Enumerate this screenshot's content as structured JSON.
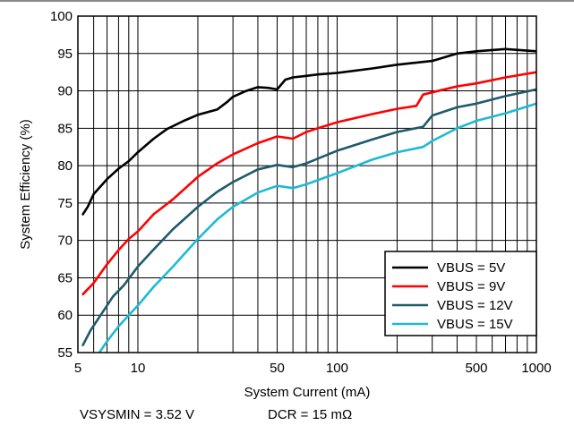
{
  "chart_data": {
    "type": "line",
    "xlabel": "System Current (mA)",
    "ylabel": "System Efficiency (%)",
    "x_scale": "log",
    "xlim": [
      5,
      1000
    ],
    "ylim": [
      55,
      100
    ],
    "x_ticks": [
      5,
      10,
      50,
      100,
      500,
      1000
    ],
    "x_tick_labels": [
      "5",
      "10",
      "50",
      "100",
      "500",
      "1000"
    ],
    "y_ticks": [
      55,
      60,
      65,
      70,
      75,
      80,
      85,
      90,
      95,
      100
    ],
    "y_tick_labels": [
      "55",
      "60",
      "65",
      "70",
      "75",
      "80",
      "85",
      "90",
      "95",
      "100"
    ],
    "grid": true,
    "legend_position": "bottom-right",
    "series": [
      {
        "name": "VBUS = 5V",
        "color": "#000000",
        "x": [
          5.3,
          5.6,
          6,
          7,
          8,
          9,
          10,
          12,
          14,
          17,
          20,
          25,
          28,
          30,
          35,
          40,
          45,
          50,
          55,
          60,
          70,
          80,
          100,
          150,
          200,
          300,
          400,
          500,
          700,
          1000
        ],
        "y": [
          73.5,
          74.5,
          76.2,
          78.2,
          79.6,
          80.6,
          81.8,
          83.6,
          84.9,
          86.0,
          86.8,
          87.5,
          88.5,
          89.2,
          90.0,
          90.5,
          90.4,
          90.2,
          91.5,
          91.8,
          92.0,
          92.2,
          92.4,
          93.0,
          93.5,
          94.0,
          95.0,
          95.3,
          95.6,
          95.3
        ]
      },
      {
        "name": "VBUS = 9V",
        "color": "#ff0000",
        "x": [
          5.3,
          6,
          7,
          8,
          9,
          10,
          12,
          15,
          20,
          25,
          30,
          40,
          50,
          60,
          70,
          80,
          100,
          150,
          200,
          250,
          270,
          300,
          400,
          500,
          700,
          1000
        ],
        "y": [
          62.8,
          64.3,
          66.8,
          68.7,
          70.2,
          71.2,
          73.5,
          75.5,
          78.5,
          80.3,
          81.5,
          83.0,
          83.9,
          83.6,
          84.5,
          85.0,
          85.8,
          86.9,
          87.6,
          88.0,
          89.5,
          89.8,
          90.6,
          91.0,
          91.8,
          92.5
        ]
      },
      {
        "name": "VBUS = 12V",
        "color": "#1f5a6b",
        "x": [
          5.3,
          5.8,
          6.5,
          7.5,
          8.5,
          10,
          12,
          15,
          20,
          25,
          30,
          40,
          50,
          60,
          70,
          100,
          150,
          200,
          270,
          300,
          400,
          500,
          700,
          1000
        ],
        "y": [
          56.0,
          58.0,
          60.0,
          62.5,
          64.0,
          66.5,
          68.8,
          71.5,
          74.5,
          76.5,
          77.8,
          79.5,
          80.1,
          79.8,
          80.3,
          82.0,
          83.5,
          84.5,
          85.2,
          86.7,
          87.8,
          88.3,
          89.3,
          90.2
        ]
      },
      {
        "name": "VBUS = 15V",
        "color": "#1fb9d5",
        "x": [
          6.4,
          7,
          8,
          9,
          10,
          12,
          15,
          20,
          25,
          30,
          40,
          50,
          60,
          70,
          100,
          150,
          200,
          270,
          300,
          400,
          500,
          700,
          1000
        ],
        "y": [
          55.0,
          56.5,
          58.5,
          60.0,
          61.3,
          63.8,
          66.5,
          70.2,
          72.8,
          74.5,
          76.4,
          77.3,
          77.0,
          77.5,
          79.0,
          80.8,
          81.8,
          82.5,
          83.3,
          85.0,
          86.0,
          87.0,
          88.3
        ]
      }
    ]
  },
  "footnote": {
    "vsysmin": "VSYSMIN = 3.52 V",
    "dcr": "DCR = 15 mΩ"
  }
}
